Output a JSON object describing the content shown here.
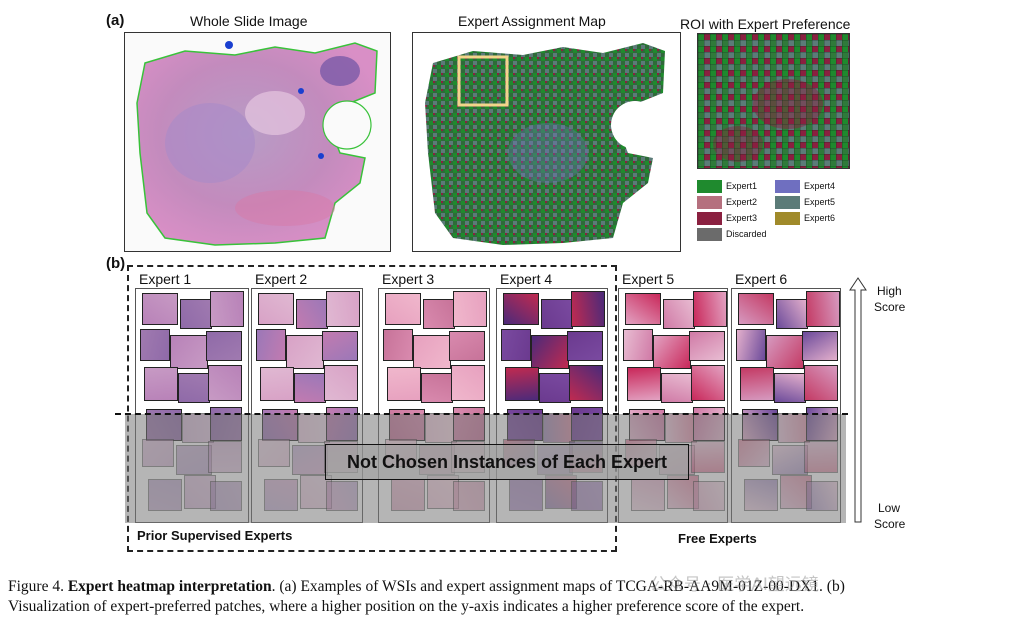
{
  "panel_a": {
    "letter": "(a)",
    "titles": [
      "Whole Slide Image",
      "Expert Assignment Map",
      "ROI with Expert Preference"
    ],
    "legend": [
      {
        "label": "Expert1",
        "color": "#1f8a2e"
      },
      {
        "label": "Expert4",
        "color": "#6f6fc0"
      },
      {
        "label": "Expert2",
        "color": "#b5707e"
      },
      {
        "label": "Expert5",
        "color": "#5b7b78"
      },
      {
        "label": "Expert3",
        "color": "#8a2040"
      },
      {
        "label": "Expert6",
        "color": "#a08a2a"
      },
      {
        "label": "Discarded",
        "color": "#6b6b6b"
      }
    ]
  },
  "panel_b": {
    "letter": "(b)",
    "experts": [
      "Expert 1",
      "Expert 2",
      "Expert 3",
      "Expert 4",
      "Expert 5",
      "Expert 6"
    ],
    "banner": "Not Chosen Instances of Each Expert",
    "prior_label": "Prior Supervised Experts",
    "free_label": "Free Experts",
    "axis_high": [
      "High",
      "Score"
    ],
    "axis_low": [
      "Low",
      "Score"
    ]
  },
  "caption": {
    "fig_label": "Figure 4.",
    "bold_title": "Expert heatmap interpretation",
    "line1_rest": ". (a) Examples of WSIs and expert assignment maps of TCGA-RB-AA9M-01Z-00-DX1. (b)",
    "line2": "Visualization of expert-preferred patches, where a higher position on the y-axis indicates a higher preference score of the expert."
  },
  "watermark": "公众号 · 医学AI望远镜"
}
